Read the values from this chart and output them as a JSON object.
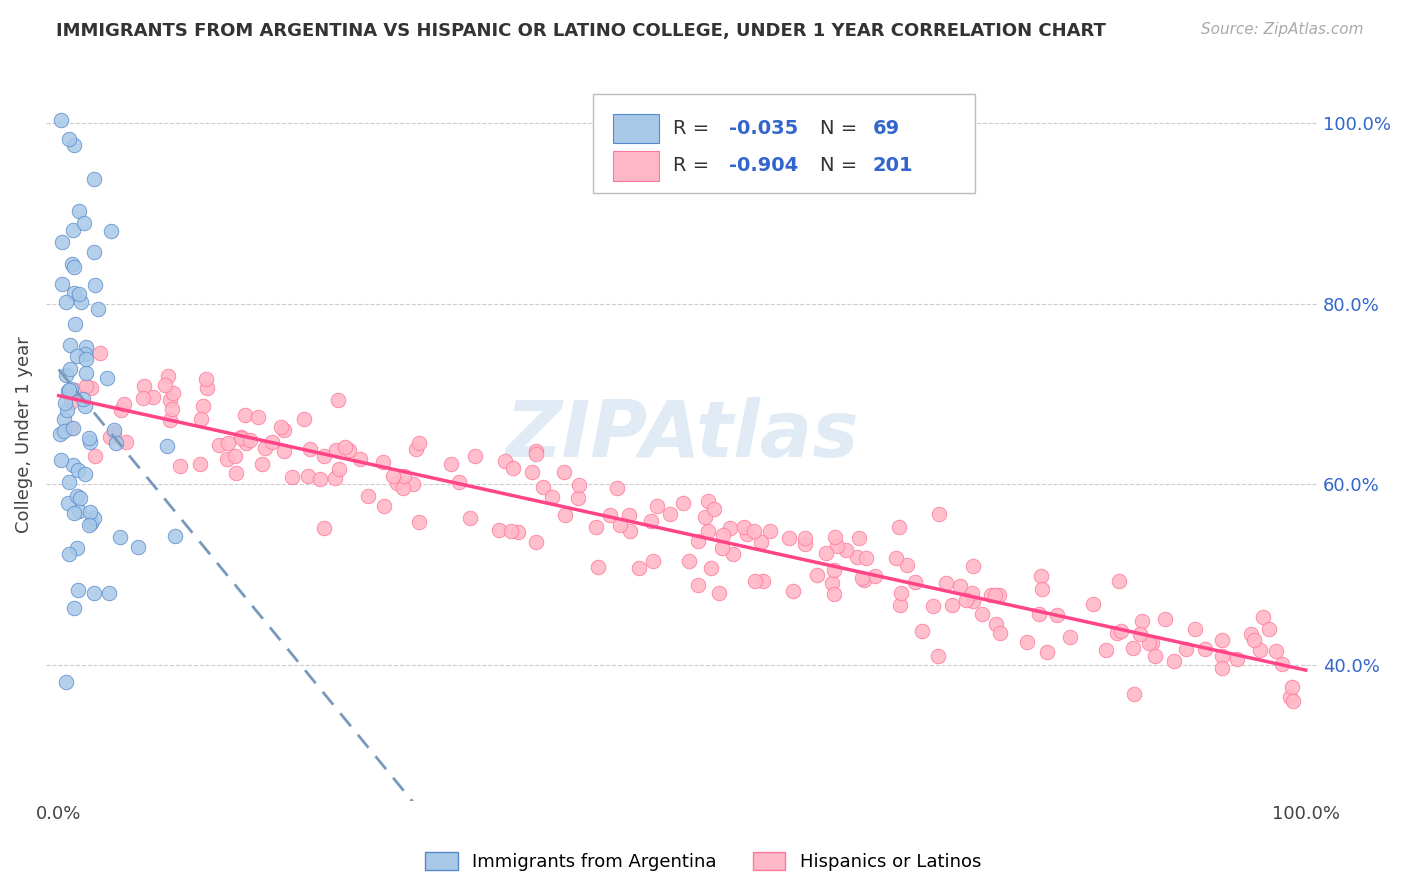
{
  "title": "IMMIGRANTS FROM ARGENTINA VS HISPANIC OR LATINO COLLEGE, UNDER 1 YEAR CORRELATION CHART",
  "source": "Source: ZipAtlas.com",
  "ylabel": "College, Under 1 year",
  "legend_label1": "Immigrants from Argentina",
  "legend_label2": "Hispanics or Latinos",
  "R1": -0.035,
  "N1": 69,
  "R2": -0.904,
  "N2": 201,
  "color_blue_fill": "#A8C8E8",
  "color_blue_edge": "#5588CC",
  "color_pink_fill": "#FFB8C8",
  "color_pink_edge": "#FF7799",
  "color_line_blue": "#7799BB",
  "color_line_pink": "#FF4488",
  "watermark_color": "#C8DCF0",
  "xlim_low": 0.0,
  "xlim_high": 1.0,
  "ylim_low": 0.25,
  "ylim_high": 1.06,
  "yticks": [
    0.4,
    0.6,
    0.8,
    1.0
  ],
  "ytick_labels_right": [
    "40.0%",
    "60.0%",
    "80.0%",
    "100.0%"
  ],
  "grid_color": "#CCCCCC",
  "blue_seed": 123,
  "pink_seed": 456,
  "title_fontsize": 13,
  "axis_fontsize": 13,
  "legend_fontsize": 14
}
